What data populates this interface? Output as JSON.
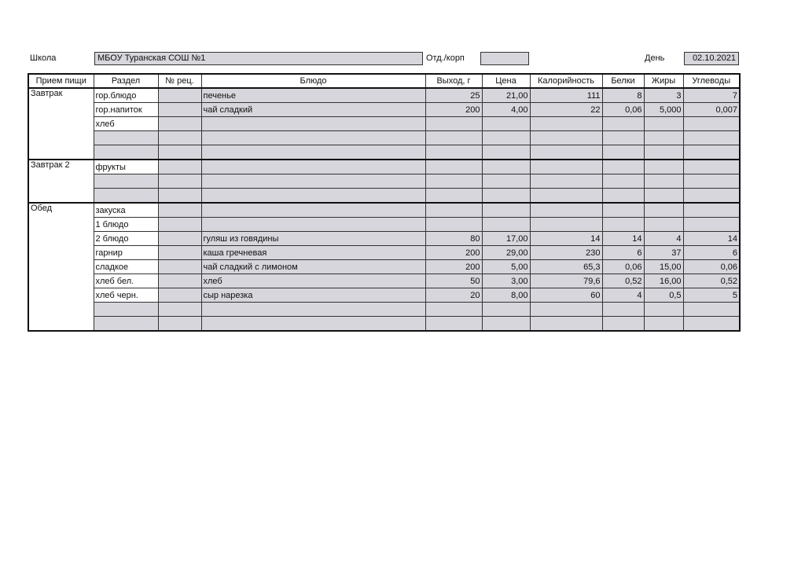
{
  "header": {
    "school_label": "Школа",
    "school": "МБОУ  Туранская СОШ №1",
    "dept_label": "Отд./корп",
    "day_label": "День",
    "day": "02.10.2021"
  },
  "table": {
    "columns": [
      "Прием пищи",
      "Раздел",
      "№ рец.",
      "Блюдо",
      "Выход, г",
      "Цена",
      "Калорийность",
      "Белки",
      "Жиры",
      "Углеводы"
    ],
    "groups": [
      {
        "meal": "Завтрак",
        "rows": [
          [
            "гор.блюдо",
            null,
            "печенье",
            "25",
            "21,00",
            "111",
            "8",
            "3",
            "7"
          ],
          [
            "гор.напиток",
            null,
            "чай сладкий",
            "200",
            "4,00",
            "22",
            "0,06",
            "5,000",
            "0,007"
          ],
          [
            "хлеб",
            null,
            null,
            null,
            null,
            null,
            null,
            null,
            null
          ],
          [
            null,
            null,
            null,
            null,
            null,
            null,
            null,
            null,
            null
          ],
          [
            null,
            null,
            null,
            null,
            null,
            null,
            null,
            null,
            null
          ]
        ]
      },
      {
        "meal": "Завтрак 2",
        "rows": [
          [
            "фрукты",
            null,
            null,
            null,
            null,
            null,
            null,
            null,
            null
          ],
          [
            null,
            null,
            null,
            null,
            null,
            null,
            null,
            null,
            null
          ],
          [
            null,
            null,
            null,
            null,
            null,
            null,
            null,
            null,
            null
          ]
        ]
      },
      {
        "meal": "Обед",
        "rows": [
          [
            "закуска",
            null,
            null,
            null,
            null,
            null,
            null,
            null,
            null
          ],
          [
            "1 блюдо",
            null,
            null,
            null,
            null,
            null,
            null,
            null,
            null
          ],
          [
            "2 блюдо",
            null,
            "гуляш из говядины",
            "80",
            "17,00",
            "14",
            "14",
            "4",
            "14"
          ],
          [
            "гарнир",
            null,
            "каша гречневая",
            "200",
            "29,00",
            "230",
            "6",
            "37",
            "6"
          ],
          [
            "сладкое",
            null,
            "чай сладкий с лимоном",
            "200",
            "5,00",
            "65,3",
            "0,06",
            "15,00",
            "0,06"
          ],
          [
            "хлеб бел.",
            null,
            "хлеб",
            "50",
            "3,00",
            "79,6",
            "0,52",
            "16,00",
            "0,52"
          ],
          [
            "хлеб черн.",
            null,
            "сыр нарезка",
            "20",
            "8,00",
            "60",
            "4",
            "0,5",
            "5"
          ],
          [
            null,
            null,
            null,
            null,
            null,
            null,
            null,
            null,
            null
          ],
          [
            null,
            null,
            null,
            null,
            null,
            null,
            null,
            null,
            null
          ]
        ]
      }
    ]
  }
}
